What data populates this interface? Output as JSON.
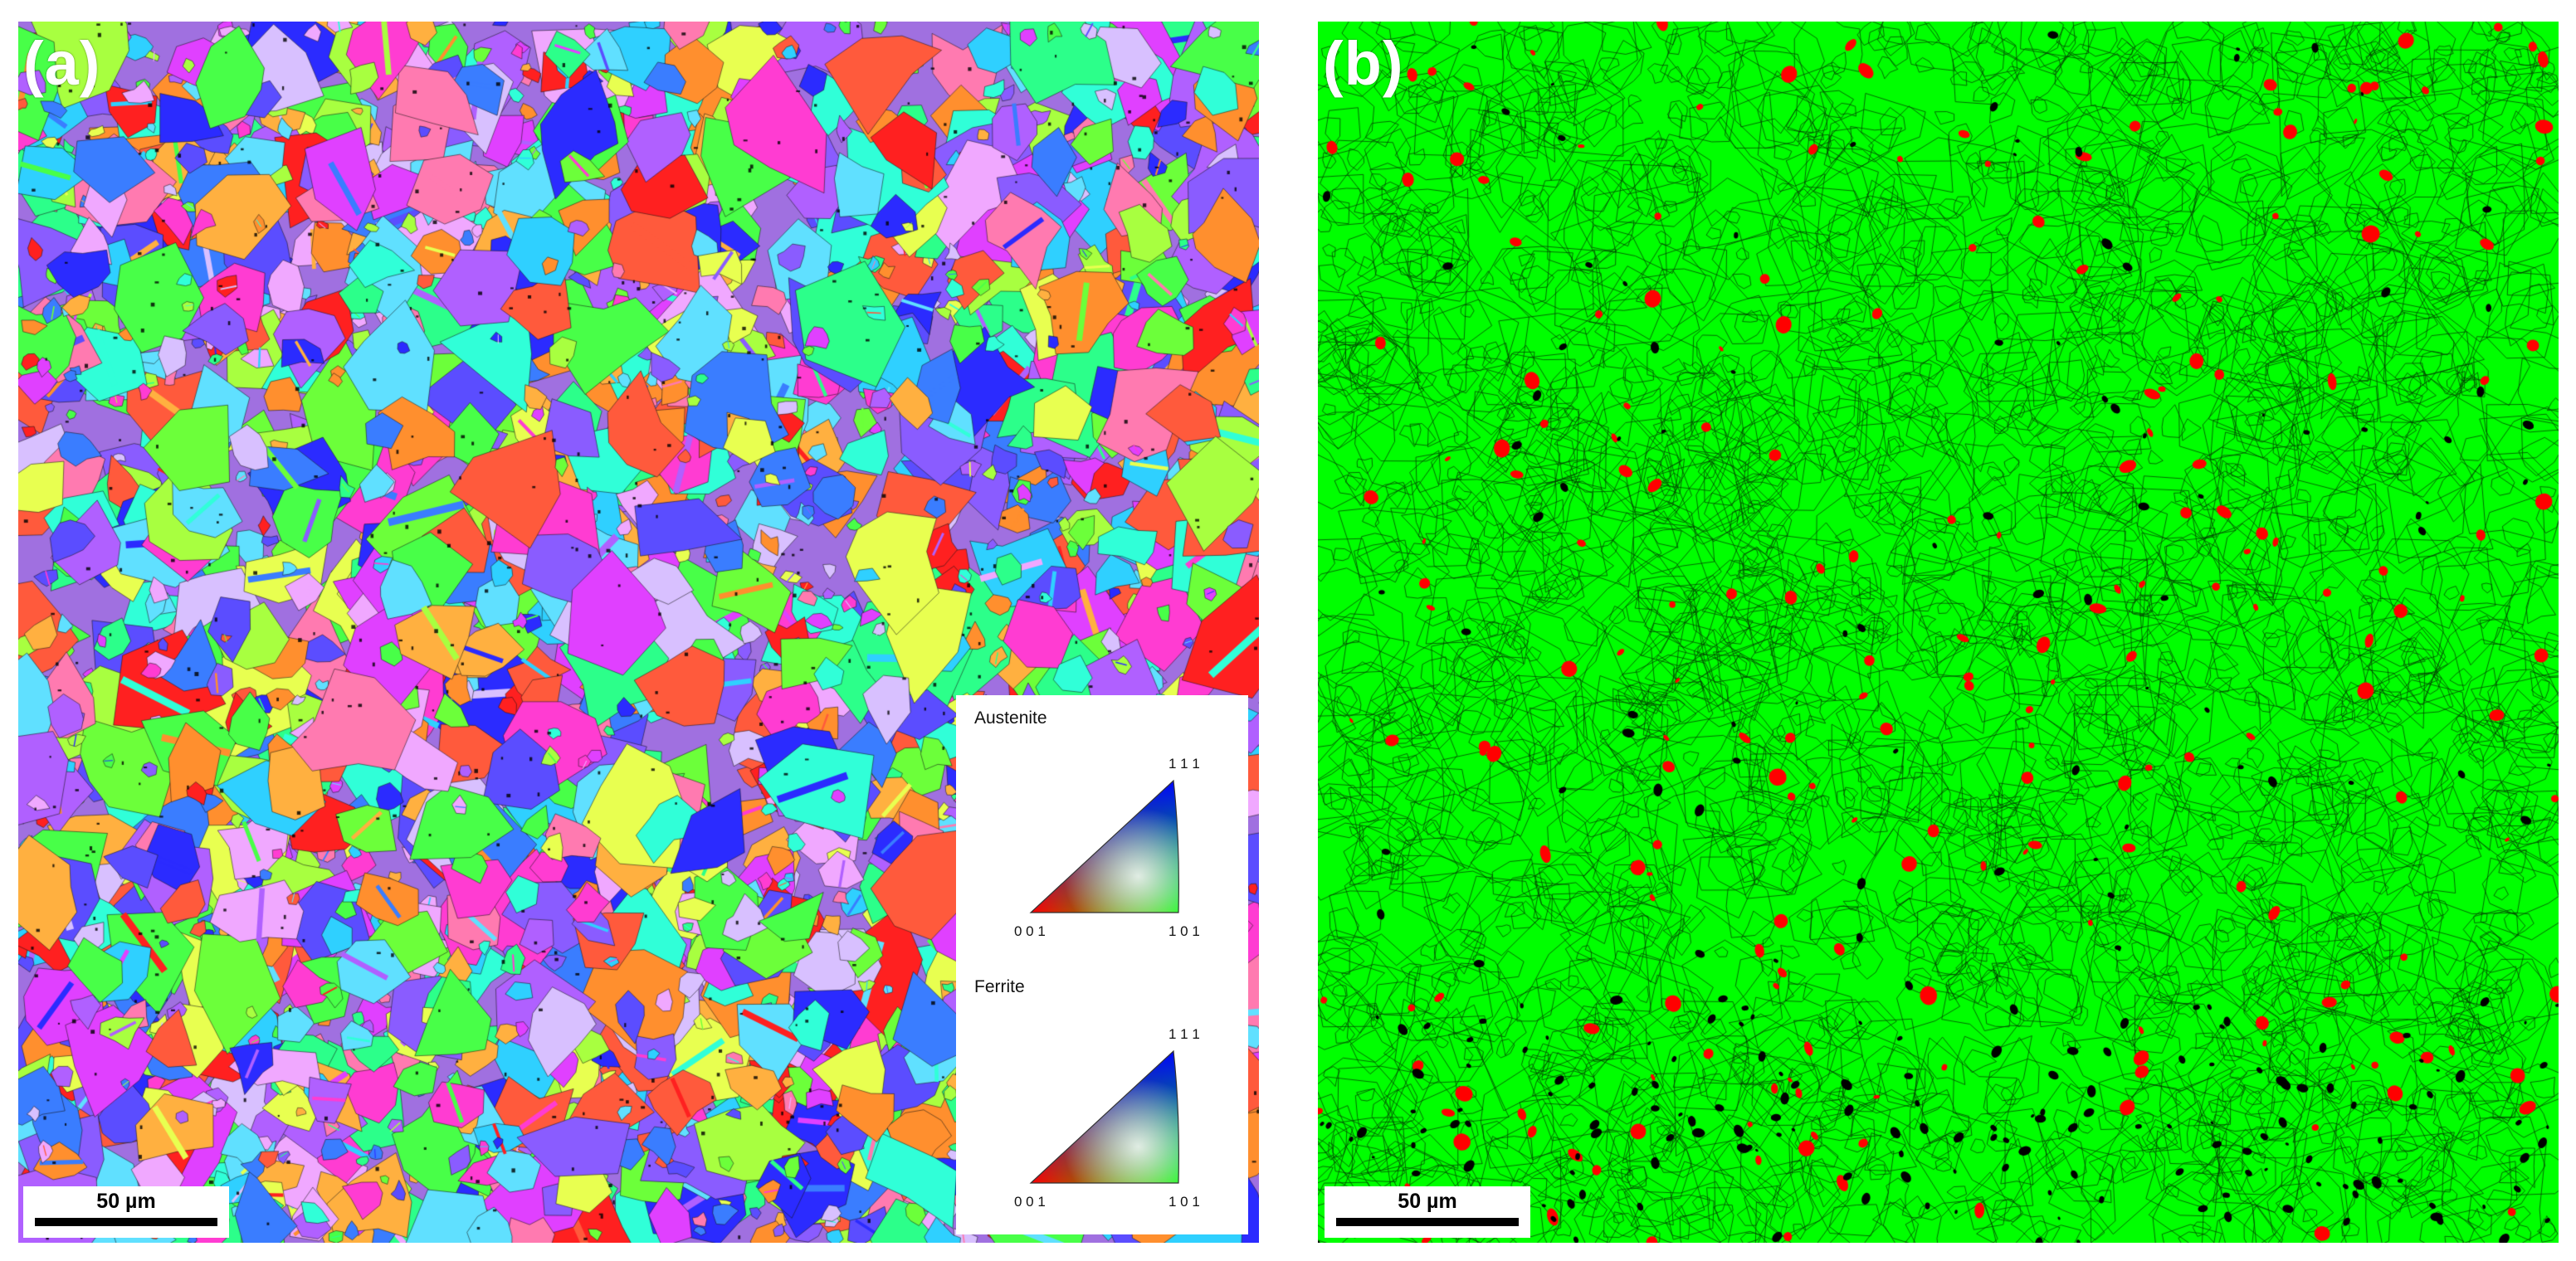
{
  "panel_a": {
    "label": "(a)",
    "scale_bar_label": "50 µm",
    "legend": [
      {
        "title": "Austenite",
        "corners": {
          "top": "1 1 1",
          "bottom_left": "0 0 1",
          "bottom_right": "1 0 1"
        }
      },
      {
        "title": "Ferrite",
        "corners": {
          "top": "1 1 1",
          "bottom_left": "0 0 1",
          "bottom_right": "1 0 1"
        }
      }
    ]
  },
  "panel_b": {
    "label": "(b)",
    "scale_bar_label": "50 µm"
  },
  "colors": {
    "austenite_phase": "#00ff00",
    "ferrite_phase": "#ff0000",
    "unindexed": "#000000"
  }
}
